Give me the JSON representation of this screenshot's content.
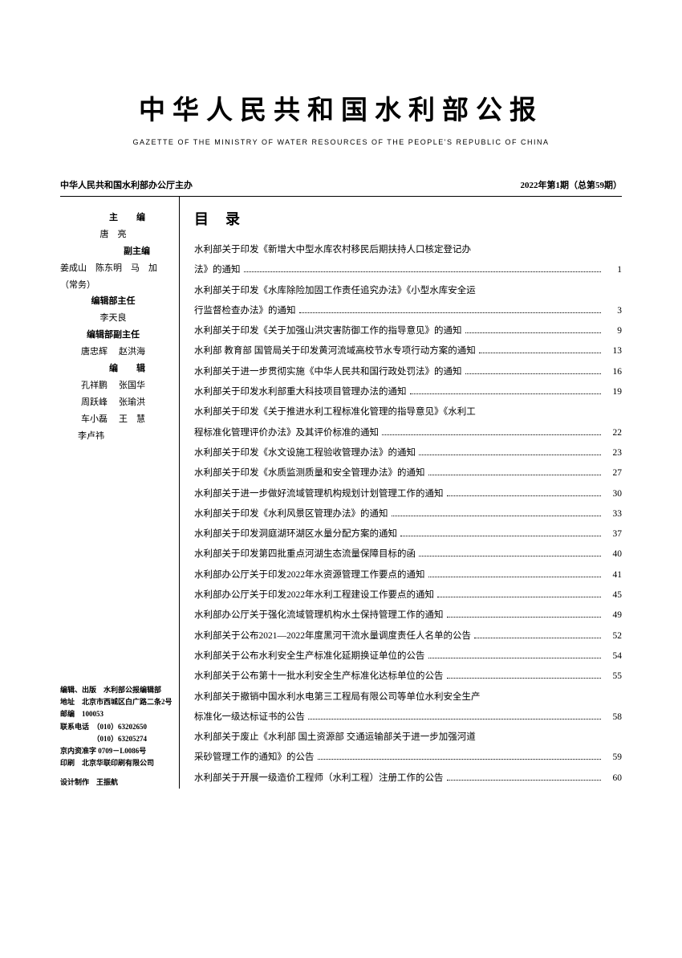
{
  "header": {
    "title": "中华人民共和国水利部公报",
    "subtitle": "GAZETTE OF THE MINISTRY OF WATER RESOURCES OF THE PEOPLE'S REPUBLIC OF CHINA"
  },
  "meta": {
    "publisher": "中华人民共和国水利部办公厅主办",
    "issue": "2022年第1期（总第59期）"
  },
  "sidebar": {
    "role_chief": "主　编",
    "chief": "唐　亮",
    "role_deputy": "副主编",
    "deputy": "姜成山　陈东明　马　加（常务）",
    "role_dir": "编辑部主任",
    "dir": "李天良",
    "role_vicedir": "编辑部副主任",
    "vicedir_a": "唐忠辉",
    "vicedir_b": "赵洪海",
    "role_editor": "编　辑",
    "ed1a": "孔祥鹏",
    "ed1b": "张国华",
    "ed2a": "周跃峰",
    "ed2b": "张瑜洪",
    "ed3a": "车小磊",
    "ed3b": "王　慧",
    "ed4": "李卢祎"
  },
  "pubinfo": {
    "l1": "编辑、出版　水利部公报编辑部",
    "l2": "地址　北京市西城区白广路二条2号",
    "l3": "邮编　100053",
    "l4": "联系电话　（010）63202650",
    "l5": "　　　　　（010）63205274",
    "l6": "京内资准字 0709－L0086号",
    "l7": "印刷　北京华联印刷有限公司",
    "l8": "设计制作　王振航"
  },
  "toc": {
    "title": "目 录",
    "items": [
      {
        "lines": [
          "水利部关于印发《新增大中型水库农村移民后期扶持人口核定登记办",
          "法》的通知"
        ],
        "page": "1"
      },
      {
        "lines": [
          "水利部关于印发《水库除险加固工作责任追究办法》《小型水库安全运",
          "行监督检查办法》的通知"
        ],
        "page": "3"
      },
      {
        "lines": [
          "水利部关于印发《关于加强山洪灾害防御工作的指导意见》的通知"
        ],
        "page": "9"
      },
      {
        "lines": [
          "水利部 教育部 国管局关于印发黄河流域高校节水专项行动方案的通知"
        ],
        "page": "13"
      },
      {
        "lines": [
          "水利部关于进一步贯彻实施《中华人民共和国行政处罚法》的通知"
        ],
        "page": "16"
      },
      {
        "lines": [
          "水利部关于印发水利部重大科技项目管理办法的通知"
        ],
        "page": "19"
      },
      {
        "lines": [
          "水利部关于印发《关于推进水利工程标准化管理的指导意见》《水利工",
          "程标准化管理评价办法》及其评价标准的通知"
        ],
        "page": "22"
      },
      {
        "lines": [
          "水利部关于印发《水文设施工程验收管理办法》的通知"
        ],
        "page": "23"
      },
      {
        "lines": [
          "水利部关于印发《水质监测质量和安全管理办法》的通知"
        ],
        "page": "27"
      },
      {
        "lines": [
          "水利部关于进一步做好流域管理机构规划计划管理工作的通知"
        ],
        "page": "30"
      },
      {
        "lines": [
          "水利部关于印发《水利风景区管理办法》的通知"
        ],
        "page": "33"
      },
      {
        "lines": [
          "水利部关于印发洞庭湖环湖区水量分配方案的通知"
        ],
        "page": "37"
      },
      {
        "lines": [
          "水利部关于印发第四批重点河湖生态流量保障目标的函"
        ],
        "page": "40"
      },
      {
        "lines": [
          "水利部办公厅关于印发2022年水资源管理工作要点的通知"
        ],
        "page": "41"
      },
      {
        "lines": [
          "水利部办公厅关于印发2022年水利工程建设工作要点的通知"
        ],
        "page": "45"
      },
      {
        "lines": [
          "水利部办公厅关于强化流域管理机构水土保持管理工作的通知"
        ],
        "page": "49"
      },
      {
        "lines": [
          "水利部关于公布2021—2022年度黑河干流水量调度责任人名单的公告"
        ],
        "page": "52"
      },
      {
        "lines": [
          "水利部关于公布水利安全生产标准化延期换证单位的公告"
        ],
        "page": "54"
      },
      {
        "lines": [
          "水利部关于公布第十一批水利安全生产标准化达标单位的公告"
        ],
        "page": "55"
      },
      {
        "lines": [
          "水利部关于撤销中国水利水电第三工程局有限公司等单位水利安全生产",
          "标准化一级达标证书的公告"
        ],
        "page": "58"
      },
      {
        "lines": [
          "水利部关于废止《水利部 国土资源部 交通运输部关于进一步加强河道",
          "采砂管理工作的通知》的公告"
        ],
        "page": "59"
      },
      {
        "lines": [
          "水利部关于开展一级造价工程师（水利工程）注册工作的公告"
        ],
        "page": "60"
      }
    ]
  }
}
